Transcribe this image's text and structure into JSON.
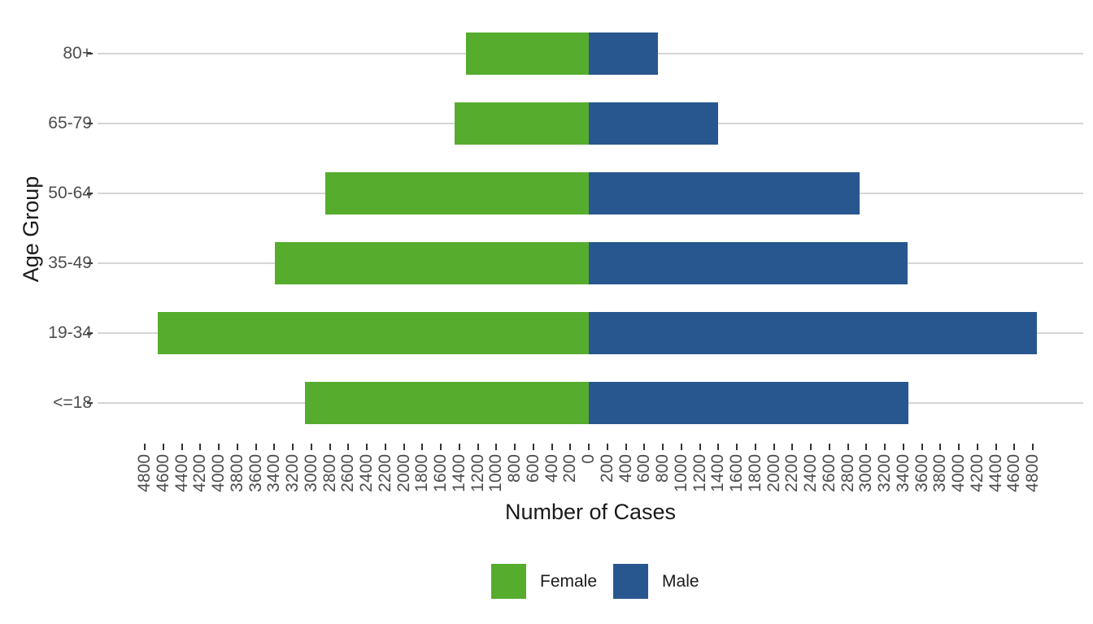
{
  "chart_data": {
    "type": "bar",
    "variant": "population-pyramid-diverging",
    "orientation": "horizontal",
    "title": "",
    "xlabel": "Number of Cases",
    "ylabel": "Age Group",
    "categories_top_to_bottom": [
      "80+",
      "65-79",
      "50-64",
      "35-49",
      "19-34",
      "<=18"
    ],
    "series": [
      {
        "name": "Female",
        "side": "left",
        "color": "#55AC2D",
        "values": [
          1325,
          1450,
          2850,
          3390,
          4660,
          3070
        ]
      },
      {
        "name": "Male",
        "side": "right",
        "color": "#28578F",
        "values": [
          745,
          1395,
          2925,
          3445,
          4840,
          3455
        ]
      }
    ],
    "x_axis": {
      "tick_interval": 200,
      "tick_min": -4800,
      "tick_max": 4800,
      "tick_label_style": "absolute-value",
      "tick_label_angle_deg": 90,
      "xlim": [
        -5310,
        5345
      ]
    },
    "grid": {
      "horizontal_major": true,
      "vertical": false,
      "color": "#d5d5d5"
    },
    "legend": {
      "position": "bottom",
      "entries": [
        {
          "label": "Female",
          "color": "#55AC2D"
        },
        {
          "label": "Male",
          "color": "#28578F"
        }
      ]
    }
  }
}
